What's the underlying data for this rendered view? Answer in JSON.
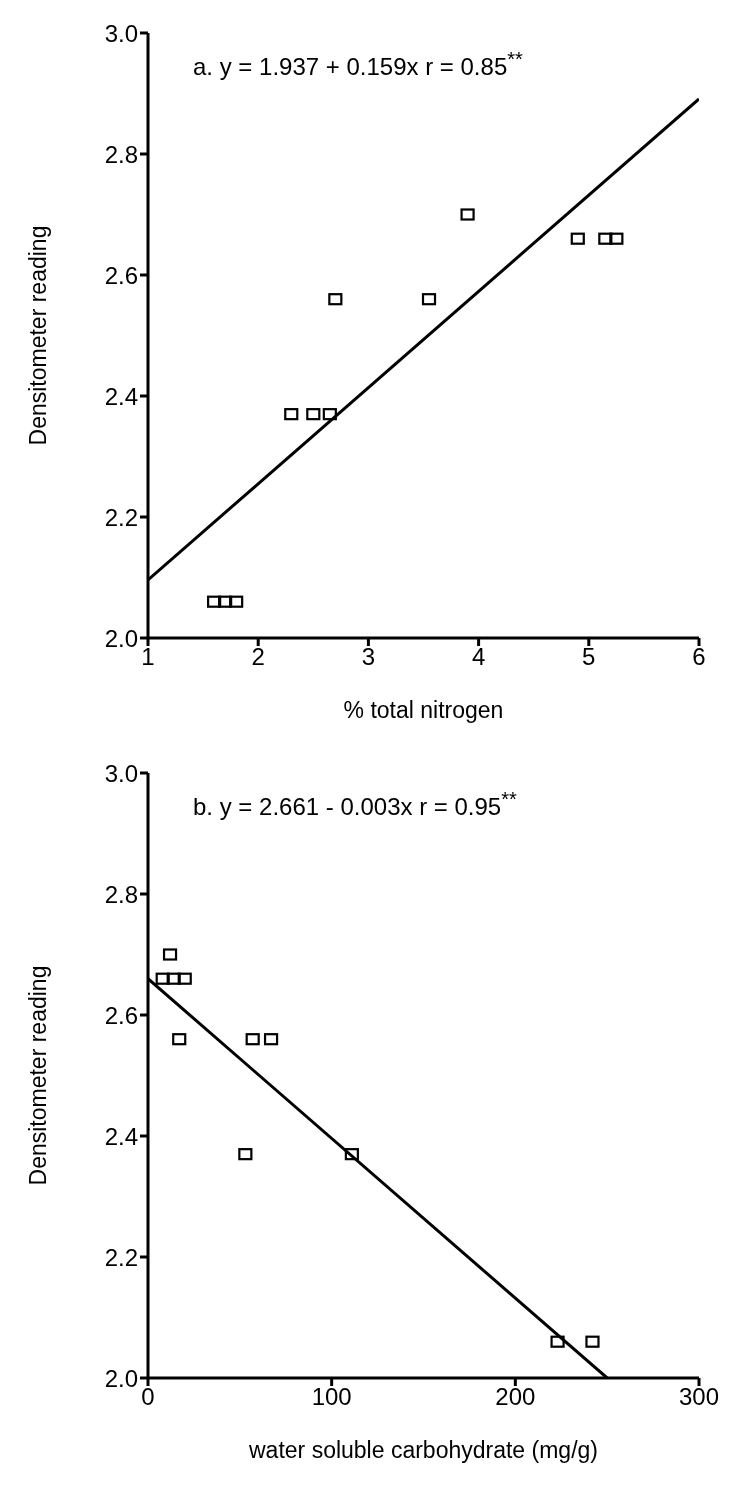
{
  "chart_data": [
    {
      "type": "scatter",
      "xlabel": "% total nitrogen",
      "ylabel": "Densitometer reading",
      "annotations": [
        "a.  y = 1.937 + 0.159x   r = 0.85$^{**}$"
      ],
      "xlim": [
        1,
        6
      ],
      "xticks": [
        1,
        2,
        3,
        4,
        5,
        6
      ],
      "ylim": [
        2.0,
        3.0
      ],
      "yticks": [
        {
          "value": 2,
          "label": "2.0"
        },
        {
          "value": 2.2,
          "label": "2.2"
        },
        {
          "value": 2.4,
          "label": "2.4"
        },
        {
          "value": 2.6,
          "label": "2.6"
        },
        {
          "value": 2.8,
          "label": "2.8"
        },
        {
          "value": 3,
          "label": "3.0"
        }
      ],
      "marker": "square",
      "series": [
        {
          "color": "#000000",
          "x": [
            1.6,
            1.7,
            1.8,
            2.3,
            2.5,
            2.65,
            2.7,
            3.55,
            3.9,
            4.9,
            5.15,
            5.25
          ],
          "values": [
            2.06,
            2.06,
            2.06,
            2.37,
            2.37,
            2.37,
            2.56,
            2.56,
            2.7,
            2.66,
            2.66,
            2.66
          ]
        },
        {
          "type": "line",
          "color": "#000000",
          "marker": "none",
          "line_style": "solid",
          "x": [
            1,
            6
          ],
          "values": [
            2.096,
            2.891
          ]
        }
      ]
    },
    {
      "type": "scatter",
      "xlabel": "water soluble carbohydrate (mg/g)",
      "ylabel": "Densitometer reading",
      "annotations": [
        "b.  y = 2.661 - 0.003x  r = 0.95$^{**}$"
      ],
      "xlim": [
        0,
        300
      ],
      "xticks": [
        0,
        100,
        200,
        300
      ],
      "ylim": [
        2.0,
        3.0
      ],
      "yticks": [
        {
          "value": 2,
          "label": "2.0"
        },
        {
          "value": 2.2,
          "label": "2.2"
        },
        {
          "value": 2.4,
          "label": "2.4"
        },
        {
          "value": 2.6,
          "label": "2.6"
        },
        {
          "value": 2.8,
          "label": "2.8"
        },
        {
          "value": 3,
          "label": "3.0"
        }
      ],
      "marker": "square",
      "series": [
        {
          "color": "#000000",
          "x": [
            12,
            8,
            14,
            20,
            17,
            57,
            67,
            53,
            111,
            223,
            242
          ],
          "values": [
            2.7,
            2.66,
            2.66,
            2.66,
            2.56,
            2.56,
            2.56,
            2.37,
            2.37,
            2.06,
            2.06
          ]
        },
        {
          "type": "line",
          "color": "#000000",
          "marker": "none",
          "line_style": "solid",
          "x": [
            0,
            250
          ],
          "values": [
            2.66,
            2.0
          ]
        }
      ]
    }
  ]
}
